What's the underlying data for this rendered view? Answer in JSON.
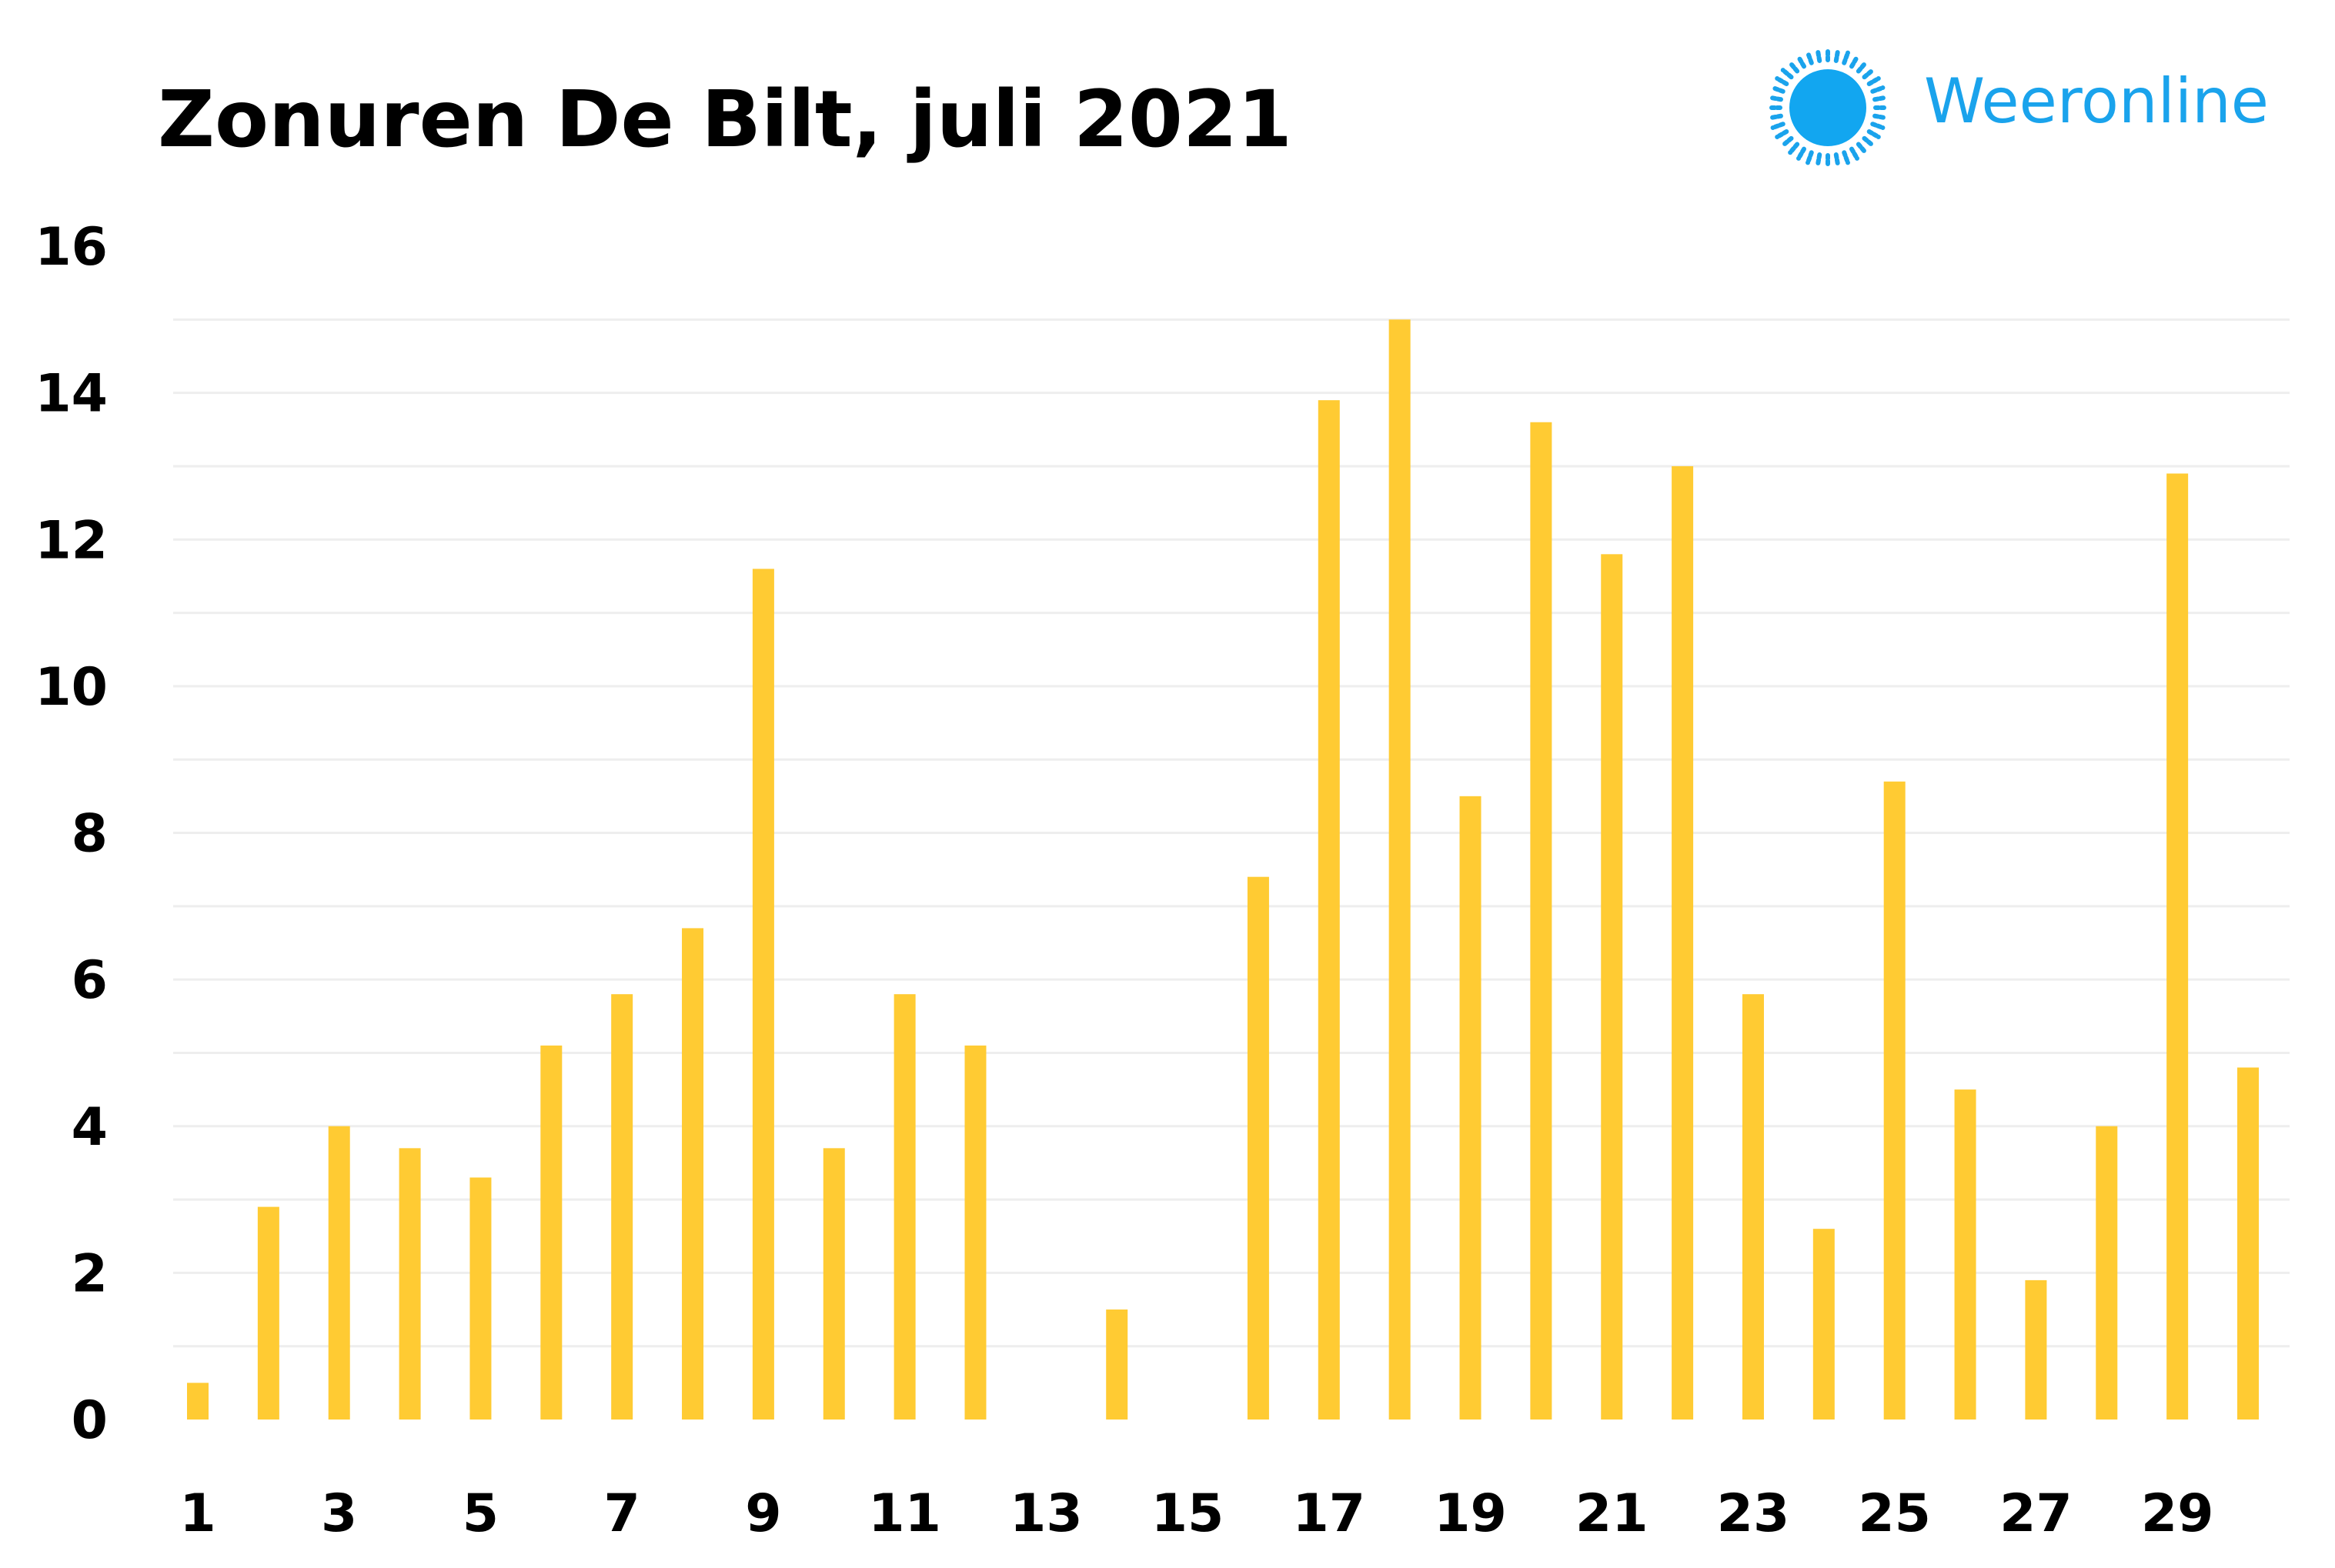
{
  "chart_data": {
    "type": "bar",
    "title": "Zonuren De Bilt, juli 2021",
    "xlabel": "",
    "ylabel": "",
    "ylim": [
      0,
      16
    ],
    "y_ticks": [
      "0",
      "2",
      "4",
      "6",
      "8",
      "10",
      "12",
      "14",
      "16"
    ],
    "grid": true,
    "categories": [
      1,
      2,
      3,
      4,
      5,
      6,
      7,
      8,
      9,
      10,
      11,
      12,
      13,
      14,
      15,
      16,
      17,
      18,
      19,
      20,
      21,
      22,
      23,
      24,
      25,
      26,
      27,
      28,
      29,
      30
    ],
    "x_tick_labels": [
      "1",
      "3",
      "5",
      "7",
      "9",
      "11",
      "13",
      "15",
      "17",
      "19",
      "21",
      "23",
      "25",
      "27",
      "29"
    ],
    "values": [
      0.5,
      2.9,
      4.0,
      3.7,
      3.3,
      5.1,
      5.8,
      6.7,
      11.6,
      3.7,
      5.8,
      5.1,
      0,
      1.5,
      0,
      7.4,
      13.9,
      15.0,
      8.5,
      13.6,
      11.8,
      13.0,
      5.8,
      2.6,
      8.7,
      4.5,
      1.9,
      4.0,
      12.9,
      4.8
    ],
    "bar_color": "#ffcb33",
    "grid_color": "#eeeeee"
  },
  "logo": {
    "text": "Weeronline",
    "icon": "sun-icon",
    "color": "#1aa3ec"
  }
}
